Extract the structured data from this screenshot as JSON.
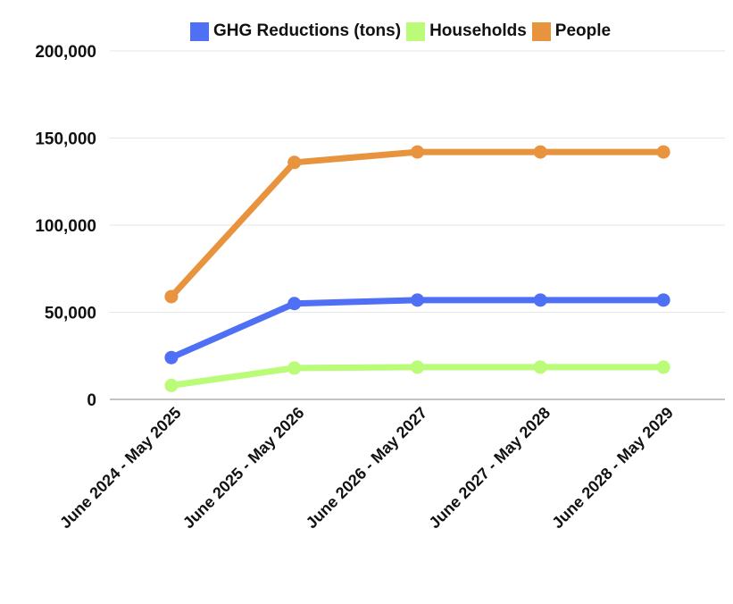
{
  "chart_data": {
    "type": "line",
    "categories": [
      "June 2024 - May 2025",
      "June 2025 - May 2026",
      "June 2026 - May 2027",
      "June 2027 - May 2028",
      "June 2028 - May 2029"
    ],
    "series": [
      {
        "name": "GHG Reductions (tons)",
        "color": "#4f6ff5",
        "values": [
          24000,
          55000,
          57000,
          57000,
          57000
        ]
      },
      {
        "name": "Households",
        "color": "#bafb78",
        "values": [
          8000,
          18000,
          18500,
          18500,
          18500
        ]
      },
      {
        "name": "People",
        "color": "#e8943f",
        "values": [
          59000,
          136000,
          142000,
          142000,
          142000
        ]
      }
    ],
    "yticks": [
      "0",
      "50,000",
      "100,000",
      "150,000",
      "200,000"
    ],
    "ytick_values": [
      0,
      50000,
      100000,
      150000,
      200000
    ],
    "ylim": [
      0,
      200000
    ],
    "grid": true,
    "legend_position": "top"
  }
}
